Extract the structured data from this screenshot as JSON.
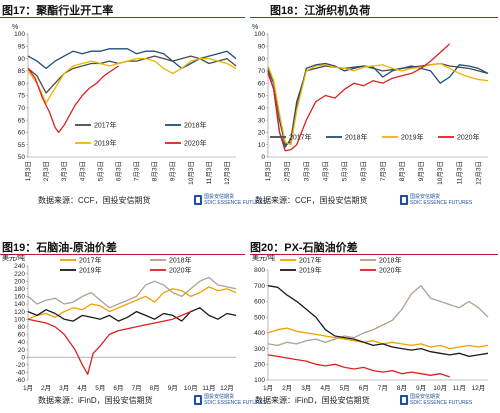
{
  "panels": [
    {
      "title": "图17：聚酯行业开工率",
      "source": "数据来源：CCF，国投安信期货",
      "logo": {
        "cn": "国投安信期货",
        "en": "SDIC ESSENCE FUTURES"
      }
    },
    {
      "title": "图18：江浙织机负荷",
      "source": "数据来源：CCF，国投安信期货",
      "logo": {
        "cn": "国投安信期货",
        "en": "SDIC ESSENCE FUTURES"
      }
    },
    {
      "title": "图19：石脑油-原油价差",
      "source": "数据来源：iFinD，国投安信期货",
      "logo": {
        "cn": "国投安信期货",
        "en": "SDIC ESSENCE FUTURES"
      }
    },
    {
      "title": "图20：PX-石脑油价差",
      "source": "数据来源：iFinD，国投安信期货",
      "logo": {
        "cn": "国投安信期货",
        "en": "SDIC ESSENCE FUTURES"
      }
    }
  ],
  "chart_data": [
    {
      "type": "line",
      "unit_label": "%",
      "ylim": [
        50,
        100
      ],
      "yticks": [
        50,
        55,
        60,
        65,
        70,
        75,
        80,
        85,
        90,
        95,
        100
      ],
      "categories": [
        "1月3日",
        "2月3日",
        "3月3日",
        "4月3日",
        "5月3日",
        "6月3日",
        "7月3日",
        "8月3日",
        "9月3日",
        "10月3日",
        "11月3日",
        "12月3日"
      ],
      "legend_position": "middle",
      "colors": {
        "2017年": "#4a4a4a",
        "2018年": "#1f4e79",
        "2019年": "#f0b400",
        "2020年": "#e02020"
      },
      "series": [
        {
          "name": "2017年",
          "x": [
            0,
            0.5,
            1,
            1.5,
            2,
            2.5,
            3,
            3.5,
            4,
            4.5,
            5,
            5.5,
            6,
            6.5,
            7,
            7.5,
            8,
            8.5,
            9,
            9.5,
            10,
            10.5,
            11,
            11.5
          ],
          "values": [
            86,
            83,
            76,
            80,
            84,
            86,
            87,
            88,
            88,
            89,
            88,
            89,
            89,
            90,
            91,
            90,
            89,
            90,
            91,
            90,
            88,
            89,
            90,
            87
          ]
        },
        {
          "name": "2018年",
          "x": [
            0,
            0.5,
            1,
            1.5,
            2,
            2.5,
            3,
            3.5,
            4,
            4.5,
            5,
            5.5,
            6,
            6.5,
            7,
            7.5,
            8,
            8.5,
            9,
            9.5,
            10,
            10.5,
            11,
            11.5
          ],
          "values": [
            91,
            89,
            86,
            89,
            91,
            93,
            92,
            93,
            93,
            94,
            94,
            94,
            92,
            93,
            93,
            92,
            89,
            86,
            88,
            90,
            91,
            92,
            93,
            90
          ]
        },
        {
          "name": "2019年",
          "x": [
            0,
            0.5,
            1,
            1.5,
            2,
            2.5,
            3,
            3.5,
            4,
            4.5,
            5,
            5.5,
            6,
            6.5,
            7,
            7.5,
            8,
            8.5,
            9,
            9.5,
            10,
            10.5,
            11,
            11.5
          ],
          "values": [
            85,
            80,
            72,
            78,
            84,
            87,
            88,
            89,
            88,
            87,
            88,
            89,
            90,
            90,
            89,
            86,
            84,
            86,
            89,
            90,
            90,
            89,
            88,
            86
          ]
        },
        {
          "name": "2020年",
          "x": [
            0,
            0.4,
            0.8,
            1.2,
            1.5,
            1.7,
            2,
            2.3,
            2.6,
            3,
            3.4,
            3.8,
            4.2,
            4.6,
            5
          ],
          "values": [
            86,
            82,
            74,
            68,
            62,
            60,
            63,
            67,
            71,
            75,
            78,
            80,
            83,
            85,
            87
          ]
        }
      ]
    },
    {
      "type": "line",
      "unit_label": "%",
      "ylim": [
        0,
        100
      ],
      "yticks": [
        0,
        10,
        20,
        30,
        40,
        50,
        60,
        70,
        80,
        90,
        100
      ],
      "categories": [
        "1月3日",
        "2月3日",
        "3月3日",
        "4月3日",
        "5月3日",
        "6月3日",
        "7月3日",
        "8月3日",
        "9月3日",
        "10月3日",
        "11月3日",
        "12月3日"
      ],
      "legend_position": "bottom",
      "colors": {
        "2017年": "#4a4a4a",
        "2018年": "#1f4e79",
        "2019年": "#f0b400",
        "2020年": "#e02020"
      },
      "series": [
        {
          "name": "2017年",
          "x": [
            0,
            0.3,
            0.6,
            0.9,
            1.2,
            1.5,
            2,
            2.5,
            3,
            3.5,
            4,
            4.5,
            5,
            5.5,
            6,
            6.5,
            7,
            7.5,
            8,
            8.5,
            9,
            9.5,
            10,
            10.5,
            11,
            11.5
          ],
          "values": [
            70,
            55,
            20,
            8,
            15,
            45,
            70,
            72,
            74,
            73,
            72,
            73,
            74,
            72,
            70,
            71,
            72,
            73,
            74,
            75,
            76,
            74,
            73,
            72,
            70,
            68
          ]
        },
        {
          "name": "2018年",
          "x": [
            0,
            0.3,
            0.6,
            0.9,
            1.2,
            1.5,
            2,
            2.5,
            3,
            3.5,
            4,
            4.5,
            5,
            5.5,
            6,
            6.5,
            7,
            7.5,
            8,
            8.5,
            9,
            9.5,
            10,
            10.5,
            11,
            11.5
          ],
          "values": [
            72,
            60,
            30,
            10,
            12,
            40,
            72,
            75,
            76,
            74,
            70,
            72,
            74,
            73,
            65,
            70,
            72,
            74,
            72,
            70,
            60,
            65,
            75,
            74,
            72,
            68
          ]
        },
        {
          "name": "2019年",
          "x": [
            0,
            0.3,
            0.6,
            0.9,
            1.2,
            1.5,
            2,
            2.5,
            3,
            3.5,
            4,
            4.5,
            5,
            5.5,
            6,
            6.5,
            7,
            7.5,
            8,
            8.5,
            9,
            9.5,
            10,
            10.5,
            11,
            11.5
          ],
          "values": [
            74,
            62,
            35,
            12,
            10,
            38,
            70,
            74,
            75,
            73,
            72,
            70,
            73,
            74,
            75,
            72,
            70,
            72,
            73,
            75,
            76,
            72,
            68,
            65,
            63,
            62
          ]
        },
        {
          "name": "2020年",
          "x": [
            0,
            0.3,
            0.6,
            0.9,
            1.2,
            1.5,
            2,
            2.5,
            3,
            3.5,
            4,
            4.5,
            5,
            5.5,
            6,
            6.5,
            7,
            7.5,
            8,
            8.5,
            9,
            9.5
          ],
          "values": [
            68,
            55,
            20,
            5,
            6,
            10,
            30,
            45,
            50,
            48,
            55,
            60,
            58,
            62,
            60,
            64,
            66,
            68,
            72,
            78,
            85,
            92
          ]
        }
      ]
    },
    {
      "type": "line",
      "unit_label": "美元/吨",
      "ylim": [
        -60,
        240
      ],
      "yticks": [
        -60,
        -40,
        -20,
        0,
        20,
        40,
        60,
        80,
        100,
        120,
        140,
        160,
        180,
        200,
        220,
        240
      ],
      "categories": [
        "1月",
        "2月",
        "3月",
        "4月",
        "5月",
        "6月",
        "7月",
        "8月",
        "9月",
        "10月",
        "11月",
        "12月"
      ],
      "legend_position": "top",
      "colors": {
        "2017年": "#f0a000",
        "2018年": "#b0a090",
        "2019年": "#1a1a1a",
        "2020年": "#e02020"
      },
      "series": [
        {
          "name": "2017年",
          "x": [
            0,
            0.5,
            1,
            1.5,
            2,
            2.5,
            3,
            3.5,
            4,
            4.5,
            5,
            5.5,
            6,
            6.5,
            7,
            7.5,
            8,
            8.5,
            9,
            9.5,
            10,
            10.5,
            11,
            11.5
          ],
          "values": [
            100,
            110,
            115,
            105,
            120,
            130,
            125,
            140,
            135,
            120,
            130,
            140,
            150,
            160,
            145,
            170,
            180,
            175,
            160,
            170,
            185,
            175,
            180,
            170
          ]
        },
        {
          "name": "2018年",
          "x": [
            0,
            0.5,
            1,
            1.5,
            2,
            2.5,
            3,
            3.5,
            4,
            4.5,
            5,
            5.5,
            6,
            6.5,
            7,
            7.5,
            8,
            8.5,
            9,
            9.5,
            10,
            10.5,
            11,
            11.5
          ],
          "values": [
            160,
            140,
            150,
            155,
            140,
            145,
            160,
            170,
            150,
            130,
            140,
            150,
            160,
            190,
            200,
            190,
            170,
            160,
            180,
            200,
            210,
            190,
            185,
            180
          ]
        },
        {
          "name": "2019年",
          "x": [
            0,
            0.5,
            1,
            1.5,
            2,
            2.5,
            3,
            3.5,
            4,
            4.5,
            5,
            5.5,
            6,
            6.5,
            7,
            7.5,
            8,
            8.5,
            9,
            9.5,
            10,
            10.5,
            11,
            11.5
          ],
          "values": [
            120,
            110,
            125,
            115,
            100,
            95,
            110,
            105,
            100,
            110,
            95,
            105,
            120,
            110,
            100,
            115,
            110,
            95,
            120,
            130,
            110,
            100,
            115,
            110
          ]
        },
        {
          "name": "2020年",
          "x": [
            0,
            0.5,
            1,
            1.5,
            2,
            2.3,
            2.6,
            3,
            3.3,
            3.6,
            4,
            4.5,
            5,
            5.5,
            6,
            6.5,
            7,
            7.5,
            8,
            8.5,
            9
          ],
          "values": [
            100,
            95,
            90,
            80,
            60,
            40,
            20,
            -20,
            -45,
            10,
            30,
            60,
            70,
            75,
            80,
            85,
            90,
            95,
            100,
            110,
            120
          ]
        }
      ]
    },
    {
      "type": "line",
      "unit_label": "美元/吨",
      "ylim": [
        100,
        800
      ],
      "yticks": [
        100,
        200,
        300,
        400,
        500,
        600,
        700,
        800
      ],
      "categories": [
        "1月",
        "2月",
        "3月",
        "4月",
        "5月",
        "6月",
        "7月",
        "8月",
        "9月",
        "10月",
        "11月",
        "12月"
      ],
      "legend_position": "top",
      "colors": {
        "2017年": "#f0a000",
        "2018年": "#b0a090",
        "2019年": "#1a1a1a",
        "2020年": "#e02020"
      },
      "series": [
        {
          "name": "2017年",
          "x": [
            0,
            0.5,
            1,
            1.5,
            2,
            2.5,
            3,
            3.5,
            4,
            4.5,
            5,
            5.5,
            6,
            6.5,
            7,
            7.5,
            8,
            8.5,
            9,
            9.5,
            10,
            10.5,
            11,
            11.5
          ],
          "values": [
            400,
            420,
            430,
            410,
            400,
            390,
            380,
            370,
            360,
            350,
            340,
            350,
            330,
            340,
            330,
            320,
            330,
            310,
            320,
            300,
            310,
            320,
            310,
            320
          ]
        },
        {
          "name": "2018年",
          "x": [
            0,
            0.5,
            1,
            1.5,
            2,
            2.5,
            3,
            3.5,
            4,
            4.5,
            5,
            5.5,
            6,
            6.5,
            7,
            7.5,
            8,
            8.5,
            9,
            9.5,
            10,
            10.5,
            11,
            11.5
          ],
          "values": [
            330,
            320,
            340,
            330,
            350,
            360,
            340,
            360,
            380,
            370,
            400,
            420,
            450,
            480,
            550,
            650,
            700,
            620,
            600,
            580,
            560,
            600,
            560,
            500
          ]
        },
        {
          "name": "2019年",
          "x": [
            0,
            0.5,
            1,
            1.5,
            2,
            2.5,
            3,
            3.5,
            4,
            4.5,
            5,
            5.5,
            6,
            6.5,
            7,
            7.5,
            8,
            8.5,
            9,
            9.5,
            10,
            10.5,
            11,
            11.5
          ],
          "values": [
            700,
            690,
            640,
            600,
            550,
            500,
            420,
            380,
            370,
            360,
            340,
            320,
            330,
            310,
            300,
            290,
            300,
            280,
            270,
            260,
            270,
            250,
            260,
            270
          ]
        },
        {
          "name": "2020年",
          "x": [
            0,
            0.5,
            1,
            1.5,
            2,
            2.5,
            3,
            3.5,
            4,
            4.5,
            5,
            5.5,
            6,
            6.5,
            7,
            7.5,
            8,
            8.5,
            9,
            9.5
          ],
          "values": [
            260,
            250,
            240,
            230,
            220,
            200,
            190,
            200,
            180,
            170,
            180,
            160,
            150,
            160,
            140,
            150,
            140,
            130,
            140,
            120
          ]
        }
      ]
    }
  ]
}
